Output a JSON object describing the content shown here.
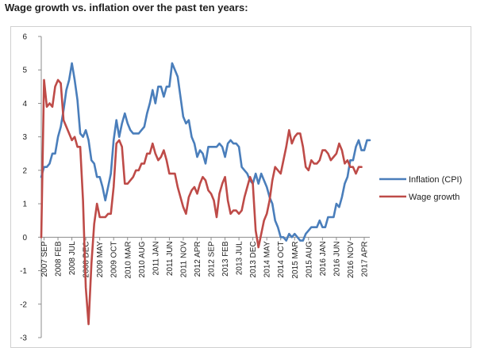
{
  "page_title": "Wage growth vs. inflation over the past ten years:",
  "chart_data": {
    "type": "line",
    "title": "",
    "ylim": [
      -3,
      6
    ],
    "yticks": [
      "6",
      "5",
      "4",
      "3",
      "2",
      "1",
      "0",
      "-1",
      "-2",
      "-3"
    ],
    "grid": false,
    "legend_position": "right",
    "x_tick_labels": [
      "2007 SEP",
      "2008 FEB",
      "2008 JUL",
      "2008 DEC",
      "2009 MAY",
      "2009 OCT",
      "2010 MAR",
      "2010 AUG",
      "2011 JAN",
      "2011 JUN",
      "2011 NOV",
      "2012 APR",
      "2012 SEP",
      "2013 FEB",
      "2013 JUL",
      "2013 DEC",
      "2014 MAY",
      "2014 OCT",
      "2015 MAR",
      "2015 AUG",
      "2016 JAN",
      "2016 JUN",
      "2016 NOV",
      "2017 APR"
    ],
    "x_start": "2007-08",
    "series": [
      {
        "name": "Inflation (CPI)",
        "color": "#4a7ebb",
        "values": [
          1.8,
          2.1,
          2.1,
          2.2,
          2.5,
          2.5,
          3.0,
          3.3,
          3.8,
          4.4,
          4.7,
          5.2,
          4.7,
          4.1,
          3.1,
          3.0,
          3.2,
          2.9,
          2.3,
          2.2,
          1.8,
          1.8,
          1.5,
          1.1,
          1.5,
          1.9,
          2.9,
          3.5,
          3.0,
          3.4,
          3.7,
          3.4,
          3.2,
          3.1,
          3.1,
          3.1,
          3.2,
          3.3,
          3.7,
          4.0,
          4.4,
          4.0,
          4.5,
          4.5,
          4.2,
          4.5,
          4.5,
          5.2,
          5.0,
          4.8,
          4.2,
          3.6,
          3.4,
          3.5,
          3.0,
          2.8,
          2.4,
          2.6,
          2.5,
          2.2,
          2.7,
          2.7,
          2.7,
          2.7,
          2.8,
          2.7,
          2.4,
          2.8,
          2.9,
          2.8,
          2.8,
          2.7,
          2.1,
          2.0,
          1.9,
          1.7,
          1.6,
          1.9,
          1.6,
          1.9,
          1.7,
          1.5,
          1.2,
          1.0,
          0.5,
          0.3,
          0.0,
          0.0,
          -0.1,
          0.1,
          0.0,
          0.1,
          0.0,
          -0.1,
          -0.1,
          0.1,
          0.2,
          0.3,
          0.3,
          0.3,
          0.5,
          0.3,
          0.3,
          0.6,
          0.6,
          0.6,
          1.0,
          0.9,
          1.2,
          1.6,
          1.8,
          2.3,
          2.3,
          2.7,
          2.9,
          2.6,
          2.6,
          2.9,
          2.9
        ]
      },
      {
        "name": "Wage growth",
        "color": "#be4b48",
        "values": [
          0.0,
          4.7,
          3.9,
          4.0,
          3.9,
          4.5,
          4.7,
          4.6,
          3.5,
          3.3,
          3.1,
          2.9,
          3.0,
          2.7,
          2.7,
          1.1,
          -1.5,
          -2.6,
          -0.8,
          0.4,
          1.0,
          0.6,
          0.6,
          0.6,
          0.7,
          0.7,
          1.5,
          2.8,
          2.9,
          2.7,
          1.6,
          1.6,
          1.7,
          1.8,
          2.0,
          2.0,
          2.2,
          2.2,
          2.5,
          2.5,
          2.8,
          2.5,
          2.3,
          2.4,
          2.6,
          2.3,
          1.9,
          1.9,
          1.9,
          1.5,
          1.2,
          0.9,
          0.7,
          1.2,
          1.4,
          1.5,
          1.3,
          1.6,
          1.8,
          1.7,
          1.4,
          1.3,
          1.1,
          0.6,
          1.3,
          1.6,
          1.8,
          1.1,
          0.7,
          0.8,
          0.8,
          0.7,
          0.8,
          1.2,
          1.5,
          1.8,
          1.6,
          0.2,
          -0.3,
          0.1,
          0.5,
          0.7,
          1.1,
          1.7,
          2.1,
          2.0,
          1.9,
          2.3,
          2.7,
          3.2,
          2.8,
          3.0,
          3.1,
          3.1,
          2.7,
          2.1,
          2.0,
          2.3,
          2.2,
          2.2,
          2.3,
          2.6,
          2.6,
          2.5,
          2.3,
          2.4,
          2.5,
          2.8,
          2.6,
          2.2,
          2.3,
          2.1,
          2.1,
          1.9,
          2.1,
          2.1
        ]
      }
    ]
  }
}
